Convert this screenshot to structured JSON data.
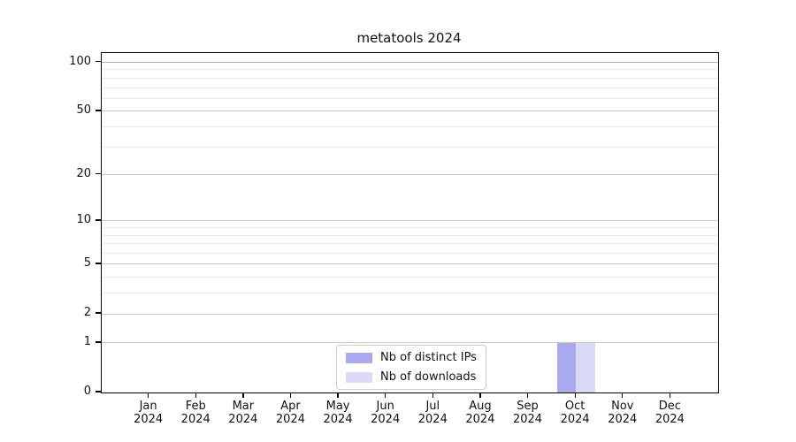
{
  "title": "metatools 2024",
  "colors": {
    "grid_major": "#c8c8c8",
    "grid_minor": "#eaeaea",
    "grid_top": "#b2b2b2",
    "axis": "#000000",
    "distinct_ips": "#a9a9f0",
    "downloads": "#dadaf7"
  },
  "legend": {
    "position": "lower center",
    "entries": [
      "Nb of distinct IPs",
      "Nb of downloads"
    ]
  },
  "chart_data": {
    "type": "bar",
    "title": "metatools 2024",
    "xlabel": "",
    "ylabel": "",
    "yscale": "log1p",
    "grid": true,
    "ylim": [
      0,
      114
    ],
    "y_ticks": [
      0,
      1,
      2,
      5,
      10,
      20,
      50,
      100
    ],
    "y_minor_ticks": [
      3,
      4,
      6,
      7,
      8,
      9,
      30,
      40,
      60,
      70,
      80,
      90
    ],
    "months": [
      "Jan",
      "Feb",
      "Mar",
      "Apr",
      "May",
      "Jun",
      "Jul",
      "Aug",
      "Sep",
      "Oct",
      "Nov",
      "Dec"
    ],
    "year": "2024",
    "categories": [
      "Jan 2024",
      "Feb 2024",
      "Mar 2024",
      "Apr 2024",
      "May 2024",
      "Jun 2024",
      "Jul 2024",
      "Aug 2024",
      "Sep 2024",
      "Oct 2024",
      "Nov 2024",
      "Dec 2024"
    ],
    "series": [
      {
        "name": "Nb of distinct IPs",
        "color": "#a9a9f0",
        "values": [
          0,
          0,
          0,
          0,
          0,
          0,
          0,
          0,
          0,
          1,
          0,
          0
        ]
      },
      {
        "name": "Nb of downloads",
        "color": "#dadaf7",
        "values": [
          0,
          0,
          0,
          0,
          0,
          0,
          0,
          0,
          0,
          1,
          0,
          0
        ]
      }
    ]
  }
}
